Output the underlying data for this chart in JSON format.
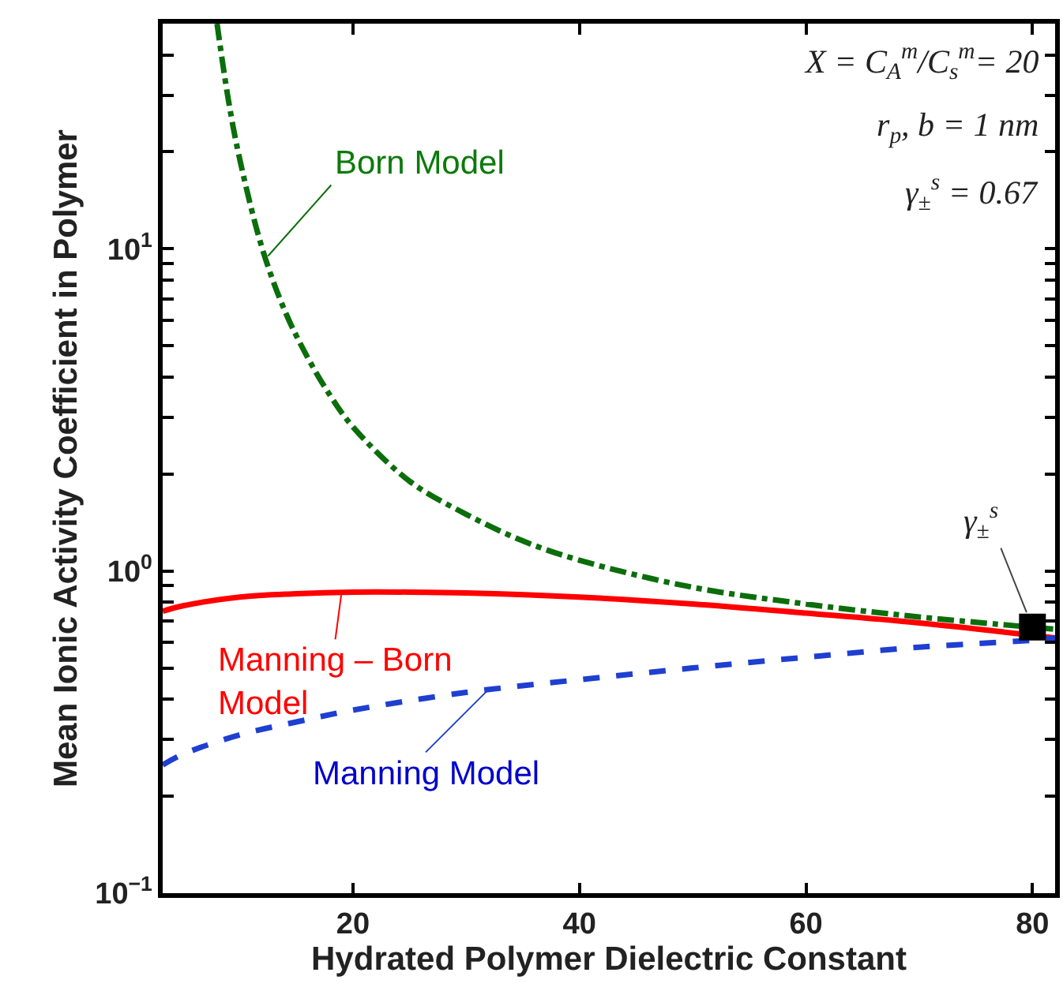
{
  "chart_data": {
    "type": "line",
    "xlabel": "Hydrated Polymer Dielectric Constant",
    "ylabel": "Mean Ionic Activity Coefficient in Polymer",
    "log": "y",
    "xlim": [
      3.2,
      82
    ],
    "xticks": [
      20,
      40,
      60,
      80
    ],
    "ylim": [
      0.1,
      50
    ],
    "yticks": [
      {
        "value": 0.1,
        "label": "10$^{−1}$"
      },
      {
        "value": 0.2,
        "label": null
      },
      {
        "value": 0.3,
        "label": null
      },
      {
        "value": 0.4,
        "label": null
      },
      {
        "value": 0.5,
        "label": null
      },
      {
        "value": 0.6,
        "label": null
      },
      {
        "value": 0.7,
        "label": null
      },
      {
        "value": 0.8,
        "label": null
      },
      {
        "value": 0.9,
        "label": null
      },
      {
        "value": 1,
        "label": "10$^{0}$"
      },
      {
        "value": 2,
        "label": null
      },
      {
        "value": 3,
        "label": null
      },
      {
        "value": 4,
        "label": null
      },
      {
        "value": 5,
        "label": null
      },
      {
        "value": 6,
        "label": null
      },
      {
        "value": 7,
        "label": null
      },
      {
        "value": 8,
        "label": null
      },
      {
        "value": 9,
        "label": null
      },
      {
        "value": 10,
        "label": "10$^{1}$"
      },
      {
        "value": 20,
        "label": null
      },
      {
        "value": 30,
        "label": null
      },
      {
        "value": 40,
        "label": null
      }
    ],
    "series": [
      {
        "color": "#0b6e0b",
        "line_style": "dashdot",
        "marker": "none",
        "x": [
          8,
          9,
          10,
          12,
          14,
          16,
          18,
          20,
          25,
          30,
          35,
          40,
          50,
          60,
          70,
          82
        ],
        "values": [
          50,
          29,
          19,
          10,
          6.4,
          4.6,
          3.5,
          2.8,
          1.9,
          1.5,
          1.24,
          1.08,
          0.89,
          0.79,
          0.72,
          0.66
        ]
      },
      {
        "color": "#ff0000",
        "line_style": "solid",
        "marker": "none",
        "x": [
          3.2,
          5,
          10,
          15,
          20,
          25,
          30,
          40,
          50,
          60,
          70,
          82
        ],
        "values": [
          0.75,
          0.78,
          0.83,
          0.85,
          0.86,
          0.86,
          0.855,
          0.83,
          0.79,
          0.74,
          0.69,
          0.62
        ]
      },
      {
        "color": "#1f3fd0",
        "line_style": "dashed",
        "marker": "none",
        "x": [
          3.2,
          5,
          10,
          15,
          20,
          30,
          40,
          50,
          60,
          70,
          80,
          82
        ],
        "values": [
          0.25,
          0.27,
          0.31,
          0.34,
          0.37,
          0.42,
          0.46,
          0.5,
          0.54,
          0.58,
          0.61,
          0.62
        ]
      },
      {
        "type": "scatter",
        "color": "#000000",
        "marker": "square",
        "x": [
          80
        ],
        "values": [
          0.67
        ]
      }
    ],
    "annotations": [
      "X = C$_{A}$$^{m}$/C$_{s}$$^{m}$= 20",
      "r$_{p}$, b = 1 nm",
      "γ$_{±}$$^{s}$ = 0.67",
      {
        "text": "Born Model",
        "x": 12.5,
        "y": 9.5
      },
      {
        "text": "Manning – Born Model",
        "x": 19,
        "y": 0.86
      },
      {
        "text": "Manning Model",
        "x": 32,
        "y": 0.43
      },
      {
        "text": "γ$_{±}$$^{s}$",
        "x": 80,
        "y": 0.67
      }
    ]
  }
}
